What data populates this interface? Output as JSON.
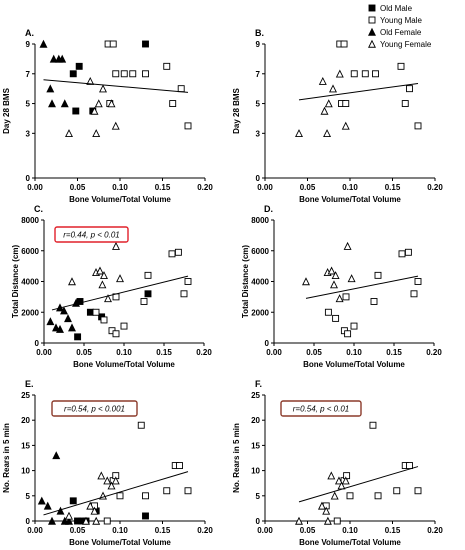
{
  "legend": {
    "entries": [
      {
        "label": "Old Male",
        "marker": "square",
        "filled": true
      },
      {
        "label": "Young Male",
        "marker": "square",
        "filled": false
      },
      {
        "label": "Old Female",
        "marker": "triangle",
        "filled": true
      },
      {
        "label": "Young Female",
        "marker": "triangle",
        "filled": false
      }
    ]
  },
  "colors": {
    "red_box": "#e0202a",
    "brown_box": "#8b3a2a",
    "marker": "#000000"
  },
  "chart_data": [
    {
      "type": "scatter",
      "panel": "A.",
      "xlabel": "Bone Volume/Total Volume",
      "ylabel": "Day 28 BMS",
      "xlim": [
        0,
        0.2
      ],
      "ylim": [
        0,
        9
      ],
      "xticks": [
        "0.00",
        "0.05",
        "0.10",
        "0.15",
        "0.20"
      ],
      "yticks": [
        "0",
        "3",
        "5",
        "7",
        "9"
      ],
      "annotation": "",
      "series": [
        {
          "group": "Old Male",
          "points": [
            [
              0.045,
              7
            ],
            [
              0.052,
              7.5
            ],
            [
              0.048,
              4.5
            ],
            [
              0.068,
              4.5
            ],
            [
              0.13,
              9
            ]
          ]
        },
        {
          "group": "Young Male",
          "points": [
            [
              0.086,
              9
            ],
            [
              0.092,
              9
            ],
            [
              0.088,
              5
            ],
            [
              0.105,
              7
            ],
            [
              0.115,
              7
            ],
            [
              0.13,
              7
            ],
            [
              0.155,
              7.5
            ],
            [
              0.162,
              5
            ],
            [
              0.172,
              6
            ],
            [
              0.18,
              3.5
            ],
            [
              0.095,
              7
            ]
          ]
        },
        {
          "group": "Old Female",
          "points": [
            [
              0.01,
              9
            ],
            [
              0.022,
              8
            ],
            [
              0.028,
              8
            ],
            [
              0.032,
              8
            ],
            [
              0.018,
              6
            ],
            [
              0.02,
              5
            ],
            [
              0.035,
              5
            ]
          ]
        },
        {
          "group": "Young Female",
          "points": [
            [
              0.04,
              3
            ],
            [
              0.065,
              6.5
            ],
            [
              0.07,
              4.5
            ],
            [
              0.075,
              5
            ],
            [
              0.08,
              6
            ],
            [
              0.072,
              3
            ],
            [
              0.09,
              5
            ],
            [
              0.095,
              3.5
            ]
          ]
        }
      ],
      "trend": [
        [
          0.01,
          6.6
        ],
        [
          0.18,
          5.75
        ]
      ]
    },
    {
      "type": "scatter",
      "panel": "B.",
      "xlabel": "Bone Volume/Total Volume",
      "ylabel": "Day 28 BMS",
      "xlim": [
        0,
        0.2
      ],
      "ylim": [
        0,
        9
      ],
      "xticks": [
        "0.00",
        "0.05",
        "0.10",
        "0.15",
        "0.20"
      ],
      "yticks": [
        "0",
        "3",
        "5",
        "7",
        "9"
      ],
      "annotation": "",
      "series": [
        {
          "group": "Young Male",
          "points": [
            [
              0.088,
              9
            ],
            [
              0.093,
              9
            ],
            [
              0.09,
              5
            ],
            [
              0.105,
              7
            ],
            [
              0.118,
              7
            ],
            [
              0.13,
              7
            ],
            [
              0.16,
              7.5
            ],
            [
              0.165,
              5
            ],
            [
              0.17,
              6
            ],
            [
              0.18,
              3.5
            ],
            [
              0.095,
              5
            ]
          ]
        },
        {
          "group": "Young Female",
          "points": [
            [
              0.04,
              3
            ],
            [
              0.068,
              6.5
            ],
            [
              0.07,
              4.5
            ],
            [
              0.075,
              5
            ],
            [
              0.08,
              6
            ],
            [
              0.073,
              3
            ],
            [
              0.088,
              7
            ],
            [
              0.095,
              3.5
            ]
          ]
        }
      ],
      "trend": [
        [
          0.04,
          5.25
        ],
        [
          0.18,
          6.35
        ]
      ]
    },
    {
      "type": "scatter",
      "panel": "C.",
      "xlabel": "Bone Volume/Total Volume",
      "ylabel": "Total Distance (cm)",
      "xlim": [
        0,
        0.2
      ],
      "ylim": [
        0,
        8000
      ],
      "xticks": [
        "0.00",
        "0.05",
        "0.10",
        "0.15",
        "0.20"
      ],
      "yticks": [
        "0",
        "2000",
        "4000",
        "6000",
        "8000"
      ],
      "annotation": "r=0.44, p < 0.01",
      "annotation_box": "red",
      "series": [
        {
          "group": "Old Male",
          "points": [
            [
              0.045,
              2700
            ],
            [
              0.058,
              2000
            ],
            [
              0.042,
              400
            ],
            [
              0.072,
              1700
            ],
            [
              0.13,
              3200
            ]
          ]
        },
        {
          "group": "Young Male",
          "points": [
            [
              0.065,
              2000
            ],
            [
              0.075,
              1500
            ],
            [
              0.085,
              800
            ],
            [
              0.09,
              600
            ],
            [
              0.1,
              1100
            ],
            [
              0.13,
              4400
            ],
            [
              0.125,
              2700
            ],
            [
              0.16,
              5800
            ],
            [
              0.168,
              5900
            ],
            [
              0.175,
              3200
            ],
            [
              0.18,
              4000
            ],
            [
              0.09,
              3000
            ]
          ]
        },
        {
          "group": "Old Female",
          "points": [
            [
              0.008,
              1400
            ],
            [
              0.015,
              1000
            ],
            [
              0.02,
              2300
            ],
            [
              0.025,
              2100
            ],
            [
              0.03,
              1600
            ],
            [
              0.035,
              1000
            ],
            [
              0.04,
              2600
            ],
            [
              0.02,
              900
            ]
          ]
        },
        {
          "group": "Young Female",
          "points": [
            [
              0.035,
              4000
            ],
            [
              0.065,
              4600
            ],
            [
              0.07,
              4700
            ],
            [
              0.075,
              4400
            ],
            [
              0.073,
              3800
            ],
            [
              0.09,
              6300
            ],
            [
              0.095,
              4200
            ],
            [
              0.08,
              2900
            ]
          ]
        }
      ],
      "trend": [
        [
          0.01,
          2150
        ],
        [
          0.18,
          4350
        ]
      ]
    },
    {
      "type": "scatter",
      "panel": "D.",
      "xlabel": "Bone Volume/Total Volume",
      "ylabel": "Total Distance (cm)",
      "xlim": [
        0,
        0.2
      ],
      "ylim": [
        0,
        8000
      ],
      "xticks": [
        "0.00",
        "0.05",
        "0.10",
        "0.15",
        "0.20"
      ],
      "yticks": [
        "0",
        "2000",
        "4000",
        "6000",
        "8000"
      ],
      "annotation": "",
      "series": [
        {
          "group": "Young Male",
          "points": [
            [
              0.068,
              2000
            ],
            [
              0.077,
              1600
            ],
            [
              0.088,
              800
            ],
            [
              0.092,
              600
            ],
            [
              0.1,
              1100
            ],
            [
              0.13,
              4400
            ],
            [
              0.125,
              2700
            ],
            [
              0.16,
              5800
            ],
            [
              0.168,
              5900
            ],
            [
              0.175,
              3200
            ],
            [
              0.18,
              4000
            ],
            [
              0.09,
              3000
            ]
          ]
        },
        {
          "group": "Young Female",
          "points": [
            [
              0.04,
              4000
            ],
            [
              0.067,
              4600
            ],
            [
              0.072,
              4700
            ],
            [
              0.077,
              4400
            ],
            [
              0.075,
              3800
            ],
            [
              0.092,
              6300
            ],
            [
              0.097,
              4200
            ],
            [
              0.082,
              2900
            ]
          ]
        }
      ],
      "trend": [
        [
          0.04,
          2900
        ],
        [
          0.18,
          4350
        ]
      ]
    },
    {
      "type": "scatter",
      "panel": "E.",
      "xlabel": "Bone Volume/Total Volume",
      "ylabel": "No. Rears in 5 min",
      "xlim": [
        0,
        0.2
      ],
      "ylim": [
        0,
        25
      ],
      "xticks": [
        "0.00",
        "0.05",
        "0.10",
        "0.15",
        "0.20"
      ],
      "yticks": [
        "0",
        "5",
        "10",
        "15",
        "20",
        "25"
      ],
      "annotation": "r=0.54, p < 0.001",
      "annotation_box": "brown",
      "series": [
        {
          "group": "Old Male",
          "points": [
            [
              0.045,
              4
            ],
            [
              0.05,
              0
            ],
            [
              0.055,
              0
            ],
            [
              0.06,
              0
            ],
            [
              0.072,
              2
            ],
            [
              0.13,
              1
            ]
          ]
        },
        {
          "group": "Young Male",
          "points": [
            [
              0.088,
              23
            ],
            [
              0.092,
              8
            ],
            [
              0.095,
              9
            ],
            [
              0.1,
              5
            ],
            [
              0.125,
              19
            ],
            [
              0.13,
              5
            ],
            [
              0.155,
              6
            ],
            [
              0.165,
              11
            ],
            [
              0.17,
              11
            ],
            [
              0.18,
              6
            ],
            [
              0.085,
              0
            ],
            [
              0.07,
              3
            ]
          ]
        },
        {
          "group": "Old Female",
          "points": [
            [
              0.008,
              4
            ],
            [
              0.015,
              3
            ],
            [
              0.025,
              13
            ],
            [
              0.03,
              2
            ],
            [
              0.035,
              0
            ],
            [
              0.04,
              0
            ],
            [
              0.02,
              0
            ]
          ]
        },
        {
          "group": "Young Female",
          "points": [
            [
              0.04,
              1
            ],
            [
              0.06,
              0
            ],
            [
              0.065,
              3
            ],
            [
              0.07,
              2
            ],
            [
              0.078,
              9
            ],
            [
              0.08,
              5
            ],
            [
              0.085,
              8
            ],
            [
              0.09,
              7
            ],
            [
              0.095,
              8
            ],
            [
              0.072,
              0
            ]
          ]
        }
      ],
      "trend": [
        [
          0.01,
          1.2
        ],
        [
          0.18,
          9.8
        ]
      ]
    },
    {
      "type": "scatter",
      "panel": "F.",
      "xlabel": "Bone Volume/Total Volume",
      "ylabel": "No. Rears in 5 min",
      "xlim": [
        0,
        0.2
      ],
      "ylim": [
        0,
        25
      ],
      "xticks": [
        "0.00",
        "0.05",
        "0.10",
        "0.15",
        "0.20"
      ],
      "yticks": [
        "0",
        "5",
        "10",
        "15",
        "20",
        "25"
      ],
      "annotation": "r=0.54, p < 0.01",
      "annotation_box": "brown",
      "series": [
        {
          "group": "Young Male",
          "points": [
            [
              0.088,
              23
            ],
            [
              0.093,
              8
            ],
            [
              0.096,
              9
            ],
            [
              0.1,
              5
            ],
            [
              0.127,
              19
            ],
            [
              0.133,
              5
            ],
            [
              0.155,
              6
            ],
            [
              0.165,
              11
            ],
            [
              0.17,
              11
            ],
            [
              0.18,
              6
            ],
            [
              0.085,
              0
            ],
            [
              0.072,
              3
            ]
          ]
        },
        {
          "group": "Young Female",
          "points": [
            [
              0.04,
              0
            ],
            [
              0.067,
              3
            ],
            [
              0.072,
              2
            ],
            [
              0.078,
              9
            ],
            [
              0.082,
              5
            ],
            [
              0.087,
              8
            ],
            [
              0.09,
              7
            ],
            [
              0.095,
              8
            ],
            [
              0.074,
              0
            ]
          ]
        }
      ],
      "trend": [
        [
          0.04,
          3.8
        ],
        [
          0.18,
          10.8
        ]
      ]
    }
  ]
}
